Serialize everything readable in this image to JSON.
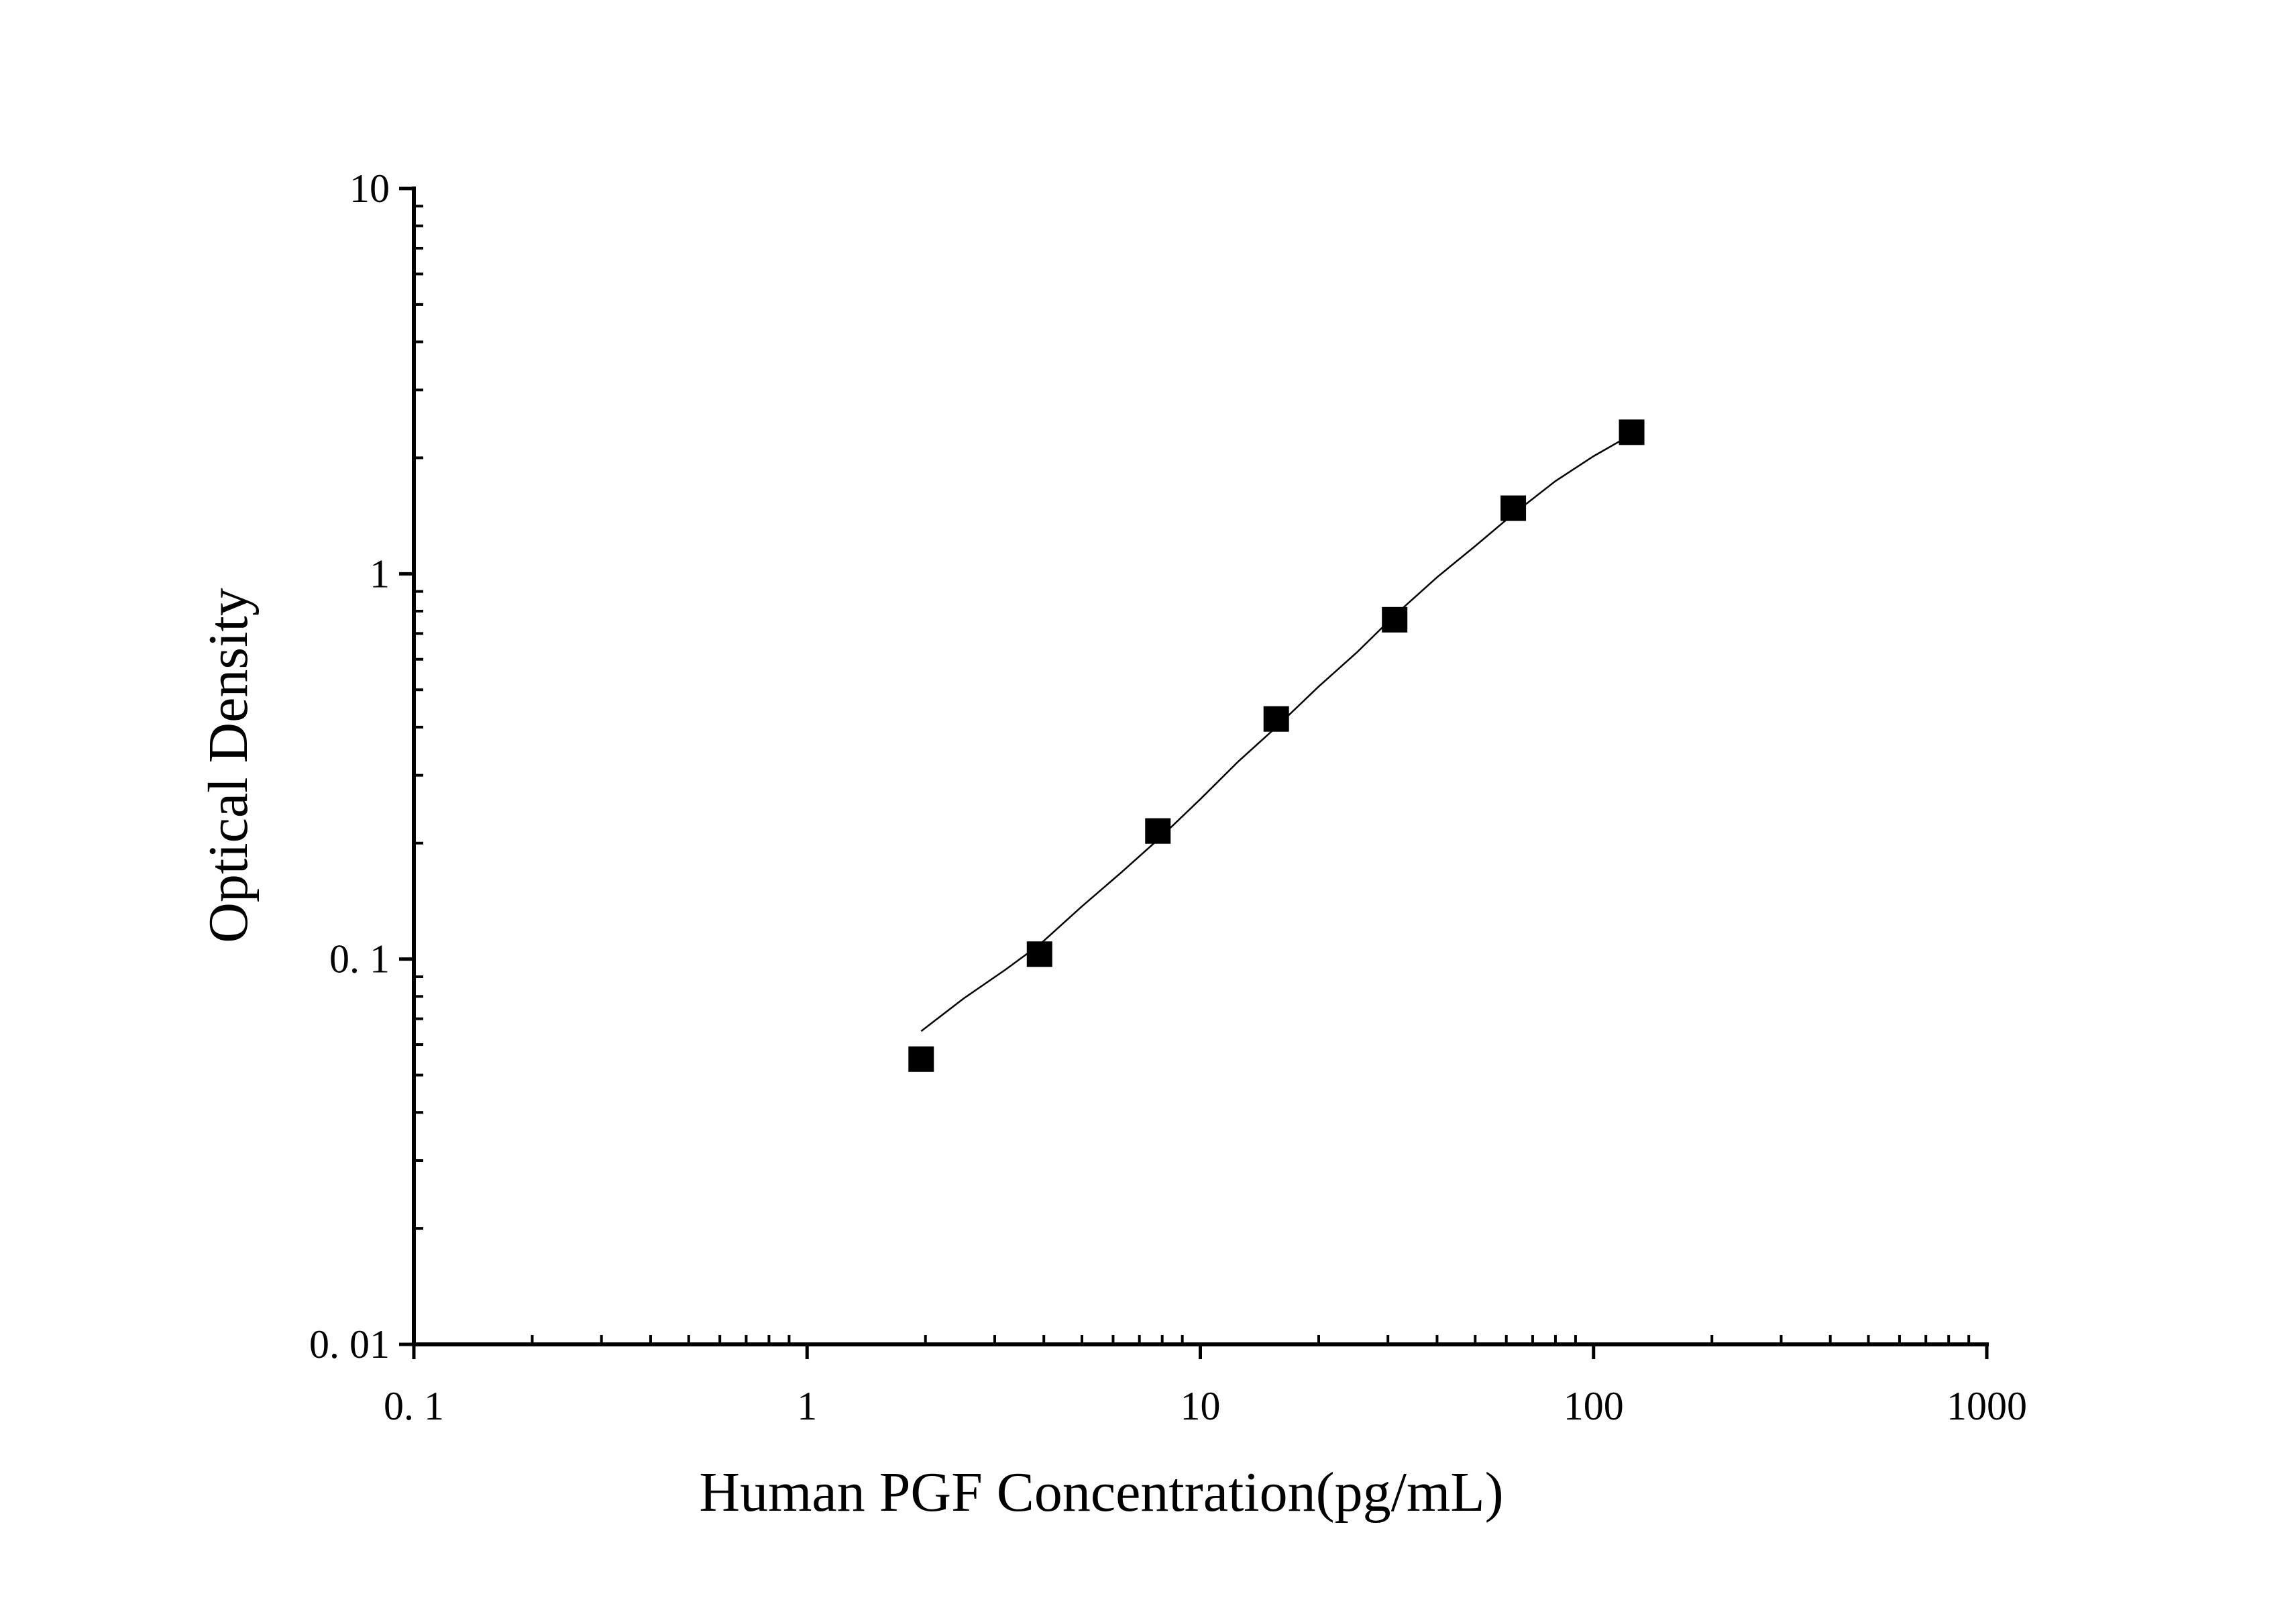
{
  "chart_data": {
    "type": "scatter",
    "xlabel": "Human PGF Concentration(pg/mL)",
    "ylabel": "Optical Density",
    "x_scale": "log",
    "y_scale": "log",
    "xlim": [
      0.1,
      1000
    ],
    "ylim": [
      0.01,
      10
    ],
    "x_ticks": [
      {
        "value": 0.1,
        "label": "0. 1"
      },
      {
        "value": 1,
        "label": "1"
      },
      {
        "value": 10,
        "label": "10"
      },
      {
        "value": 100,
        "label": "100"
      },
      {
        "value": 1000,
        "label": "1000"
      }
    ],
    "y_ticks": [
      {
        "value": 0.01,
        "label": "0. 01"
      },
      {
        "value": 0.1,
        "label": "0. 1"
      },
      {
        "value": 1,
        "label": "1"
      },
      {
        "value": 10,
        "label": "10"
      }
    ],
    "grid": false,
    "points": [
      {
        "x": 1.95,
        "y": 0.055
      },
      {
        "x": 3.9,
        "y": 0.103
      },
      {
        "x": 7.8,
        "y": 0.215
      },
      {
        "x": 15.6,
        "y": 0.42
      },
      {
        "x": 31.2,
        "y": 0.76
      },
      {
        "x": 62.5,
        "y": 1.48
      },
      {
        "x": 125,
        "y": 2.33
      }
    ],
    "fit_curve": {
      "type": "4PL",
      "x": [
        1.95,
        2.5,
        3.2,
        3.9,
        5,
        6.3,
        7.8,
        10,
        12.5,
        15.6,
        20,
        25,
        31.2,
        40,
        50,
        62.5,
        80,
        100,
        125
      ],
      "y": [
        0.065,
        0.079,
        0.094,
        0.109,
        0.137,
        0.168,
        0.204,
        0.26,
        0.326,
        0.4,
        0.51,
        0.625,
        0.78,
        0.98,
        1.18,
        1.43,
        1.74,
        2.02,
        2.3
      ]
    }
  }
}
